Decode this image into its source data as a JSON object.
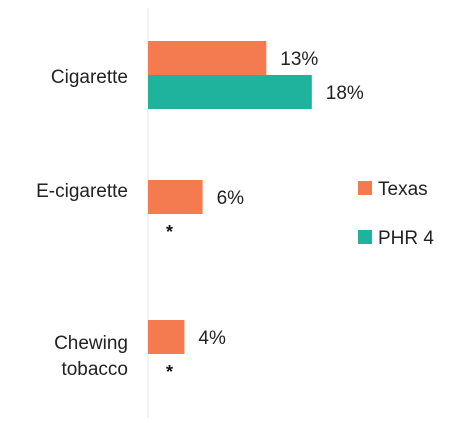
{
  "chart_data": {
    "type": "bar",
    "orientation": "horizontal",
    "categories": [
      "Cigarette",
      "E-cigarette",
      "Chewing tobacco"
    ],
    "category_label_lines": [
      [
        "Cigarette"
      ],
      [
        "E-cigarette"
      ],
      [
        "Chewing",
        "tobacco"
      ]
    ],
    "series": [
      {
        "name": "Texas",
        "color": "#F47A50",
        "values": [
          13,
          6,
          4
        ],
        "labels": [
          "13%",
          "6%",
          "4%"
        ]
      },
      {
        "name": "PHR 4",
        "color": "#1FB39E",
        "values": [
          18,
          null,
          null
        ],
        "labels": [
          "18%",
          "*",
          "*"
        ]
      }
    ],
    "value_unit": "%",
    "xlim": [
      0,
      30
    ],
    "grid": false,
    "legend_position": "right",
    "title": "",
    "xlabel": "",
    "ylabel": ""
  }
}
